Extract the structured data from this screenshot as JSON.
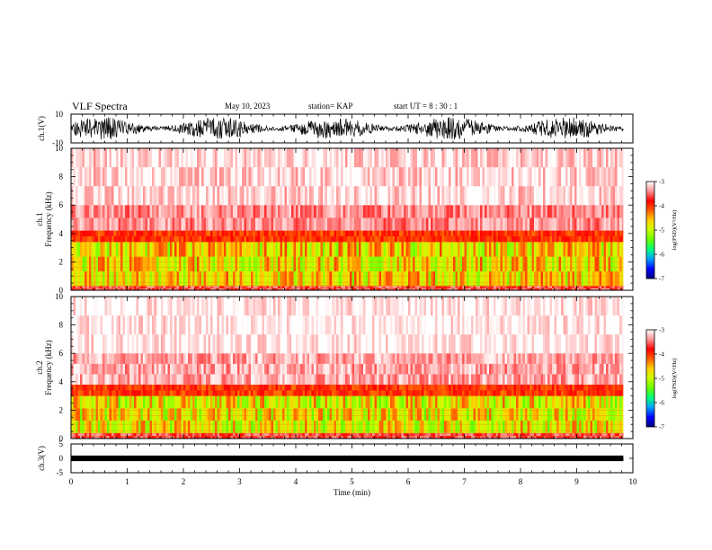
{
  "header": {
    "title": "VLF Spectra",
    "date": "May 10, 2023",
    "station": "station= KAP",
    "start": "start  UT =  8 : 30 : 1"
  },
  "colors": {
    "colorbar_stops": [
      "#000080",
      "#0000ff",
      "#00a0ff",
      "#00ff80",
      "#66ff00",
      "#c8ff00",
      "#ffd000",
      "#ff6000",
      "#ff0000",
      "#ff9090",
      "#ffffff"
    ],
    "waveform": "#000000"
  },
  "chart_data": [
    {
      "type": "line",
      "name": "ch1-waveform",
      "ylabel": "ch.1(V)",
      "ylim": [
        -10,
        10
      ],
      "yticks": [
        "10",
        "-10"
      ],
      "xlim": [
        0,
        10
      ],
      "x_extent": 9.83,
      "amplitude_range": [
        -8,
        8
      ],
      "grid": false
    },
    {
      "type": "heatmap",
      "name": "ch1-spectrogram",
      "ylabel": "ch.1\nFrequency  (kHz)",
      "ylabel_lines": [
        "ch.1",
        "Frequency  (kHz)"
      ],
      "ylim": [
        0,
        10
      ],
      "yticks": [
        "0",
        "2",
        "4",
        "6",
        "8",
        "10"
      ],
      "xlim": [
        0,
        10
      ],
      "x_extent": 9.83,
      "bands_khz": [
        {
          "from": 0,
          "to": 0.3,
          "level": -3.6
        },
        {
          "from": 0.3,
          "to": 3.4,
          "level": -4.7
        },
        {
          "from": 3.4,
          "to": 4.2,
          "level": -4.0
        },
        {
          "from": 4.2,
          "to": 6.0,
          "level": -3.4
        },
        {
          "from": 6.0,
          "to": 10,
          "level": -3.15
        }
      ],
      "colorbar": {
        "label": "log(PSD)(V²/Hz)",
        "range": [
          -7,
          -3
        ],
        "ticks": [
          "-3",
          "-4",
          "-5",
          "-6",
          "-7"
        ]
      }
    },
    {
      "type": "heatmap",
      "name": "ch2-spectrogram",
      "ylabel": "ch.2\nFrequency  (kHz)",
      "ylabel_lines": [
        "ch.2",
        "Frequency  (kHz)"
      ],
      "ylim": [
        0,
        10
      ],
      "yticks": [
        "0",
        "2",
        "4",
        "6",
        "8",
        "10"
      ],
      "xlim": [
        0,
        10
      ],
      "x_extent": 9.83,
      "bands_khz": [
        {
          "from": 0,
          "to": 0.4,
          "level": -3.6
        },
        {
          "from": 0.4,
          "to": 3.0,
          "level": -4.8
        },
        {
          "from": 3.0,
          "to": 3.8,
          "level": -4.0
        },
        {
          "from": 3.8,
          "to": 6.0,
          "level": -3.3
        },
        {
          "from": 6.0,
          "to": 10,
          "level": -3.05
        }
      ],
      "colorbar": {
        "label": "log(PSD)(V²/Hz)",
        "range": [
          -7,
          -3
        ],
        "ticks": [
          "-3",
          "-4",
          "-5",
          "-6",
          "-7"
        ]
      }
    },
    {
      "type": "line",
      "name": "ch3-waveform",
      "ylabel": "ch.3(V)",
      "ylim": [
        -5,
        5
      ],
      "yticks": [
        "5",
        "0",
        "-5"
      ],
      "xlim": [
        0,
        10
      ],
      "x_extent": 9.83,
      "amplitude_range": [
        -0.5,
        0.5
      ],
      "xlabel": "Time  (min)",
      "xticks": [
        "0",
        "1",
        "2",
        "3",
        "4",
        "5",
        "6",
        "7",
        "8",
        "9",
        "10"
      ],
      "grid": false
    }
  ]
}
